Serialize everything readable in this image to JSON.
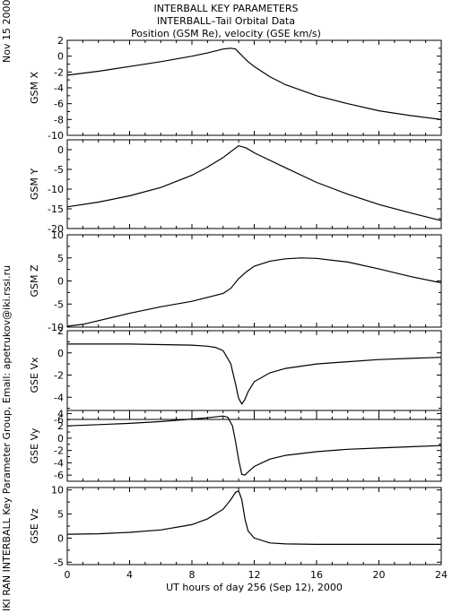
{
  "header": {
    "title": "INTERBALL KEY PARAMETERS",
    "subtitle": "INTERBALL–Tail Orbital Data",
    "units": "Position (GSM Re), velocity (GSE km/s)"
  },
  "date_label": "Nov 15 2000",
  "credit_label": "IKI RAN INTERBALL Key Parameter Group, Email: apetrukov@iki.rssi.ru",
  "chart_data": [
    {
      "type": "line",
      "ylabel": "GSM X",
      "xlim": [
        0,
        24
      ],
      "ylim": [
        -10,
        2
      ],
      "yticks": [
        2,
        0,
        -2,
        -4,
        -6,
        -8,
        -10
      ],
      "x": [
        0,
        2,
        4,
        6,
        8,
        9,
        10,
        10.5,
        10.8,
        11,
        11.3,
        11.6,
        12,
        13,
        14,
        16,
        18,
        20,
        22,
        24
      ],
      "y": [
        -2.4,
        -1.9,
        -1.3,
        -0.7,
        0.0,
        0.4,
        0.9,
        1.0,
        0.9,
        0.5,
        -0.1,
        -0.7,
        -1.3,
        -2.6,
        -3.6,
        -5.0,
        -6.0,
        -6.9,
        -7.5,
        -8.0
      ]
    },
    {
      "type": "line",
      "ylabel": "GSM Y",
      "xlim": [
        0,
        24
      ],
      "ylim": [
        -20,
        2.5
      ],
      "yticks": [
        0,
        -5,
        -10,
        -15,
        -20
      ],
      "x": [
        0,
        2,
        4,
        6,
        8,
        9,
        10,
        10.5,
        11,
        11.5,
        12,
        14,
        16,
        18,
        20,
        22,
        24
      ],
      "y": [
        -14.5,
        -13.3,
        -11.7,
        -9.6,
        -6.5,
        -4.4,
        -2.0,
        -0.5,
        1.0,
        0.4,
        -0.8,
        -4.6,
        -8.3,
        -11.3,
        -13.9,
        -16.0,
        -18.0
      ]
    },
    {
      "type": "line",
      "ylabel": "GSM Z",
      "xlim": [
        0,
        24
      ],
      "ylim": [
        -10,
        10
      ],
      "yticks": [
        10,
        5,
        0,
        -5,
        -10
      ],
      "x": [
        0,
        1,
        2,
        4,
        6,
        8,
        10,
        10.5,
        11,
        11.5,
        12,
        13,
        14,
        15,
        16,
        18,
        20,
        22,
        24
      ],
      "y": [
        -9.8,
        -9.4,
        -8.6,
        -7.0,
        -5.6,
        -4.4,
        -2.7,
        -1.6,
        0.5,
        2.0,
        3.2,
        4.3,
        4.8,
        5.0,
        4.9,
        4.1,
        2.6,
        1.0,
        -0.4
      ]
    },
    {
      "type": "line",
      "ylabel": "GSE Vx",
      "xlim": [
        0,
        24
      ],
      "ylim": [
        -6,
        2
      ],
      "yticks": [
        2,
        0,
        -2,
        -4,
        -6
      ],
      "x": [
        0,
        2,
        4,
        6,
        8,
        9,
        9.5,
        10,
        10.5,
        10.8,
        11,
        11.2,
        11.4,
        11.6,
        12,
        13,
        14,
        16,
        18,
        20,
        22,
        24
      ],
      "y": [
        0.8,
        0.8,
        0.8,
        0.75,
        0.7,
        0.6,
        0.5,
        0.2,
        -1.0,
        -2.8,
        -4.1,
        -4.6,
        -4.2,
        -3.5,
        -2.6,
        -1.8,
        -1.4,
        -1.0,
        -0.8,
        -0.6,
        -0.5,
        -0.4
      ]
    },
    {
      "type": "line",
      "ylabel": "GSE Vy",
      "xlim": [
        0,
        24
      ],
      "ylim": [
        -7,
        4.5
      ],
      "yticks": [
        4,
        2,
        0,
        -2,
        -4,
        -6
      ],
      "x": [
        0,
        2,
        4,
        6,
        8,
        9,
        10,
        10.3,
        10.6,
        10.8,
        11,
        11.2,
        11.4,
        11.6,
        12,
        13,
        14,
        16,
        18,
        20,
        22,
        24
      ],
      "y": [
        2.0,
        2.2,
        2.4,
        2.7,
        3.1,
        3.3,
        3.6,
        3.4,
        2.0,
        -0.5,
        -3.5,
        -5.9,
        -6.0,
        -5.5,
        -4.6,
        -3.4,
        -2.8,
        -2.2,
        -1.8,
        -1.6,
        -1.4,
        -1.2
      ]
    },
    {
      "type": "line",
      "ylabel": "GSE Vz",
      "xlim": [
        0,
        24
      ],
      "ylim": [
        -5.5,
        10.5
      ],
      "yticks": [
        10,
        5,
        0,
        -5
      ],
      "x": [
        0,
        2,
        4,
        6,
        8,
        9,
        10,
        10.5,
        10.8,
        11,
        11.2,
        11.4,
        11.6,
        12,
        13,
        14,
        16,
        18,
        20,
        22,
        24
      ],
      "y": [
        0.8,
        0.9,
        1.2,
        1.7,
        2.8,
        4.0,
        6.0,
        8.0,
        9.5,
        9.8,
        8.0,
        4.0,
        1.5,
        0.0,
        -1.0,
        -1.2,
        -1.3,
        -1.3,
        -1.3,
        -1.3,
        -1.3
      ]
    }
  ],
  "x_axis": {
    "label": "UT hours of day 256 (Sep 12), 2000",
    "ticks": [
      0,
      4,
      8,
      12,
      16,
      20,
      24
    ]
  }
}
